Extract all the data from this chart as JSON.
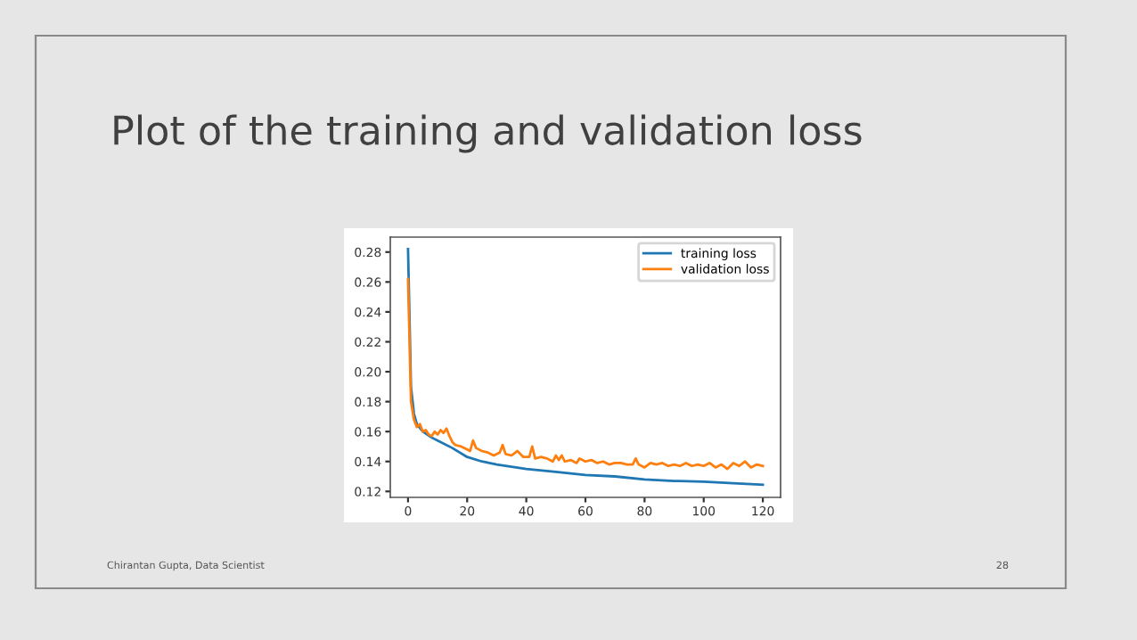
{
  "chart_data": {
    "type": "line",
    "title": "Plot of the training and validation loss",
    "annotations": [
      "Chirantan Gupta, Data Scientist",
      "28"
    ],
    "series": [
      {
        "name": "training loss",
        "color": "#1f77b4",
        "x": [
          0,
          1,
          2,
          3,
          5,
          8,
          10,
          15,
          20,
          25,
          30,
          40,
          50,
          60,
          70,
          80,
          90,
          100,
          110,
          120
        ],
        "values": [
          0.282,
          0.19,
          0.172,
          0.165,
          0.16,
          0.156,
          0.154,
          0.149,
          0.143,
          0.14,
          0.138,
          0.135,
          0.133,
          0.131,
          0.13,
          0.128,
          0.127,
          0.1265,
          0.1255,
          0.1245
        ]
      },
      {
        "name": "validation loss",
        "color": "#ff7f0e",
        "x": [
          0,
          1,
          2,
          3,
          4,
          5,
          6,
          7,
          8,
          9,
          10,
          11,
          12,
          13,
          14,
          15,
          16,
          18,
          20,
          21,
          22,
          23,
          25,
          27,
          29,
          31,
          32,
          33,
          35,
          37,
          39,
          41,
          42,
          43,
          45,
          47,
          49,
          50,
          51,
          52,
          53,
          55,
          57,
          58,
          60,
          62,
          64,
          66,
          68,
          70,
          72,
          74,
          76,
          77,
          78,
          80,
          82,
          84,
          86,
          88,
          90,
          92,
          94,
          96,
          98,
          100,
          102,
          104,
          106,
          108,
          110,
          112,
          114,
          116,
          118,
          120
        ],
        "values": [
          0.262,
          0.18,
          0.168,
          0.163,
          0.165,
          0.16,
          0.161,
          0.158,
          0.157,
          0.16,
          0.158,
          0.161,
          0.159,
          0.162,
          0.157,
          0.153,
          0.151,
          0.15,
          0.148,
          0.147,
          0.154,
          0.149,
          0.147,
          0.146,
          0.144,
          0.146,
          0.151,
          0.145,
          0.144,
          0.147,
          0.143,
          0.143,
          0.15,
          0.142,
          0.143,
          0.142,
          0.14,
          0.144,
          0.141,
          0.144,
          0.14,
          0.141,
          0.139,
          0.142,
          0.14,
          0.141,
          0.139,
          0.14,
          0.138,
          0.139,
          0.139,
          0.138,
          0.138,
          0.142,
          0.138,
          0.136,
          0.139,
          0.138,
          0.139,
          0.137,
          0.138,
          0.137,
          0.139,
          0.137,
          0.138,
          0.137,
          0.139,
          0.136,
          0.138,
          0.135,
          0.139,
          0.137,
          0.14,
          0.136,
          0.138,
          0.137
        ]
      }
    ],
    "xlim": [
      -6,
      126
    ],
    "xticks": [
      0,
      20,
      40,
      60,
      80,
      100,
      120
    ],
    "ylim": [
      0.116,
      0.29
    ],
    "yticks": [
      {
        "value": 0.12,
        "label": "0.12"
      },
      {
        "value": 0.14,
        "label": "0.14"
      },
      {
        "value": 0.16,
        "label": "0.16"
      },
      {
        "value": 0.18,
        "label": "0.18"
      },
      {
        "value": 0.2,
        "label": "0.20"
      },
      {
        "value": 0.22,
        "label": "0.22"
      },
      {
        "value": 0.24,
        "label": "0.24"
      },
      {
        "value": 0.26,
        "label": "0.26"
      },
      {
        "value": 0.28,
        "label": "0.28"
      }
    ],
    "legend": "top right",
    "grid": false
  }
}
